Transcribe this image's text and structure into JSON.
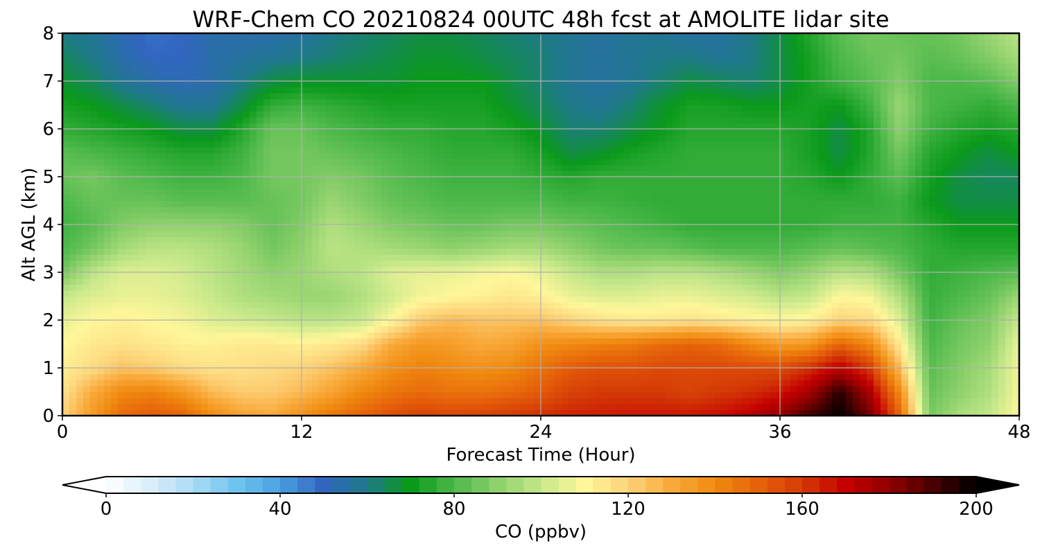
{
  "chart_data": {
    "type": "heatmap",
    "title": "WRF-Chem CO  20210824 00UTC 48h fcst at AMOLITE lidar site",
    "xlabel": "Forecast Time (Hour)",
    "ylabel": "Alt AGL (km)",
    "xlim": [
      0,
      48
    ],
    "ylim": [
      0,
      8
    ],
    "xticks": [
      0,
      12,
      24,
      36,
      48
    ],
    "yticks": [
      0,
      1,
      2,
      3,
      4,
      5,
      6,
      7,
      8
    ],
    "grid": true,
    "colorbar": {
      "label": "CO  (ppbv)",
      "range": [
        0,
        200
      ],
      "ticks": [
        0,
        40,
        80,
        120,
        160,
        200
      ],
      "extend": "both",
      "colors": [
        "#ffffff",
        "#dbeffb",
        "#a9dcf5",
        "#6fc3ef",
        "#4a9fe0",
        "#3266c0",
        "#1e7a88",
        "#0a9a1a",
        "#4cb84a",
        "#8fd16c",
        "#c6e88a",
        "#fff79a",
        "#fdd37a",
        "#f9a93a",
        "#f08a10",
        "#e6620a",
        "#d43a06",
        "#c40000",
        "#900000",
        "#4a0000",
        "#000000"
      ]
    },
    "x": [
      0,
      1.5,
      3,
      4.5,
      6,
      7.5,
      9,
      10.5,
      12,
      13.5,
      15,
      16.5,
      18,
      19.5,
      21,
      22.5,
      24,
      25.5,
      27,
      28.5,
      30,
      31.5,
      33,
      34.5,
      36,
      37.5,
      39,
      40.5,
      42,
      43.5,
      45,
      46.5,
      48
    ],
    "y": [
      0,
      0.5,
      1,
      1.5,
      2,
      2.5,
      3,
      3.5,
      4,
      4.5,
      5,
      5.5,
      6,
      6.5,
      7,
      7.5,
      8
    ],
    "z": [
      [
        120,
        135,
        148,
        152,
        150,
        140,
        132,
        130,
        138,
        145,
        150,
        155,
        158,
        157,
        158,
        160,
        162,
        164,
        165,
        166,
        166,
        166,
        168,
        172,
        180,
        192,
        200,
        185,
        150,
        86,
        95,
        100,
        110
      ],
      [
        116,
        130,
        140,
        142,
        136,
        126,
        122,
        122,
        126,
        132,
        140,
        145,
        148,
        146,
        146,
        148,
        152,
        158,
        160,
        160,
        160,
        158,
        160,
        162,
        166,
        176,
        195,
        175,
        140,
        84,
        90,
        96,
        108
      ],
      [
        112,
        118,
        124,
        122,
        118,
        116,
        116,
        118,
        120,
        124,
        130,
        138,
        142,
        140,
        138,
        140,
        146,
        152,
        154,
        154,
        156,
        156,
        156,
        156,
        156,
        162,
        172,
        160,
        126,
        82,
        88,
        94,
        108
      ],
      [
        110,
        114,
        116,
        114,
        112,
        112,
        114,
        114,
        112,
        114,
        118,
        130,
        136,
        134,
        130,
        132,
        138,
        140,
        142,
        144,
        148,
        150,
        148,
        140,
        134,
        136,
        150,
        140,
        114,
        80,
        86,
        90,
        106
      ],
      [
        106,
        110,
        112,
        110,
        108,
        104,
        102,
        100,
        98,
        98,
        100,
        110,
        122,
        126,
        124,
        124,
        124,
        120,
        116,
        114,
        114,
        116,
        114,
        112,
        110,
        112,
        120,
        118,
        104,
        78,
        84,
        88,
        100
      ],
      [
        100,
        104,
        106,
        106,
        104,
        100,
        96,
        94,
        92,
        92,
        96,
        102,
        108,
        110,
        112,
        114,
        112,
        106,
        104,
        104,
        106,
        106,
        104,
        102,
        98,
        100,
        110,
        108,
        96,
        77,
        80,
        84,
        92
      ],
      [
        86,
        98,
        104,
        104,
        102,
        98,
        94,
        90,
        92,
        96,
        98,
        104,
        106,
        106,
        108,
        110,
        106,
        100,
        96,
        96,
        98,
        98,
        96,
        92,
        88,
        92,
        98,
        96,
        86,
        76,
        78,
        80,
        82
      ],
      [
        80,
        86,
        94,
        98,
        98,
        96,
        92,
        86,
        90,
        98,
        96,
        94,
        92,
        90,
        92,
        94,
        94,
        90,
        86,
        84,
        84,
        82,
        80,
        80,
        80,
        82,
        84,
        82,
        80,
        76,
        74,
        74,
        74
      ],
      [
        78,
        82,
        88,
        90,
        90,
        90,
        88,
        84,
        88,
        96,
        92,
        88,
        86,
        84,
        84,
        86,
        86,
        84,
        82,
        80,
        78,
        76,
        76,
        76,
        76,
        76,
        78,
        78,
        78,
        74,
        70,
        70,
        70
      ],
      [
        80,
        84,
        84,
        84,
        82,
        82,
        82,
        84,
        86,
        92,
        88,
        84,
        82,
        80,
        80,
        80,
        80,
        78,
        78,
        77,
        76,
        76,
        76,
        76,
        76,
        76,
        76,
        76,
        78,
        70,
        66,
        66,
        66
      ],
      [
        84,
        86,
        82,
        80,
        78,
        78,
        80,
        86,
        86,
        88,
        86,
        82,
        80,
        78,
        78,
        78,
        76,
        74,
        76,
        76,
        76,
        76,
        76,
        76,
        76,
        74,
        70,
        76,
        82,
        72,
        66,
        64,
        64
      ],
      [
        82,
        80,
        78,
        76,
        74,
        74,
        78,
        86,
        86,
        84,
        82,
        80,
        78,
        76,
        76,
        76,
        72,
        66,
        68,
        72,
        74,
        76,
        76,
        76,
        76,
        72,
        66,
        74,
        86,
        74,
        70,
        66,
        70
      ],
      [
        76,
        74,
        72,
        70,
        66,
        66,
        74,
        84,
        84,
        80,
        78,
        76,
        76,
        74,
        74,
        72,
        68,
        62,
        62,
        66,
        70,
        74,
        74,
        74,
        74,
        72,
        66,
        74,
        90,
        78,
        74,
        72,
        74
      ],
      [
        72,
        70,
        66,
        62,
        58,
        58,
        66,
        76,
        78,
        76,
        74,
        72,
        72,
        72,
        72,
        68,
        64,
        60,
        58,
        62,
        68,
        72,
        72,
        70,
        70,
        72,
        70,
        78,
        92,
        80,
        78,
        76,
        80
      ],
      [
        68,
        64,
        58,
        54,
        52,
        54,
        60,
        66,
        68,
        68,
        68,
        68,
        70,
        70,
        70,
        66,
        62,
        58,
        56,
        58,
        62,
        66,
        64,
        62,
        66,
        72,
        78,
        82,
        88,
        80,
        80,
        82,
        88
      ],
      [
        64,
        60,
        54,
        50,
        50,
        54,
        56,
        58,
        60,
        62,
        64,
        66,
        68,
        68,
        66,
        64,
        62,
        58,
        56,
        58,
        60,
        60,
        58,
        60,
        66,
        72,
        80,
        84,
        86,
        82,
        84,
        88,
        94
      ],
      [
        60,
        58,
        52,
        48,
        50,
        54,
        54,
        54,
        56,
        60,
        62,
        64,
        66,
        66,
        64,
        62,
        60,
        58,
        56,
        58,
        58,
        56,
        56,
        60,
        66,
        74,
        82,
        86,
        84,
        84,
        86,
        92,
        98
      ]
    ]
  }
}
